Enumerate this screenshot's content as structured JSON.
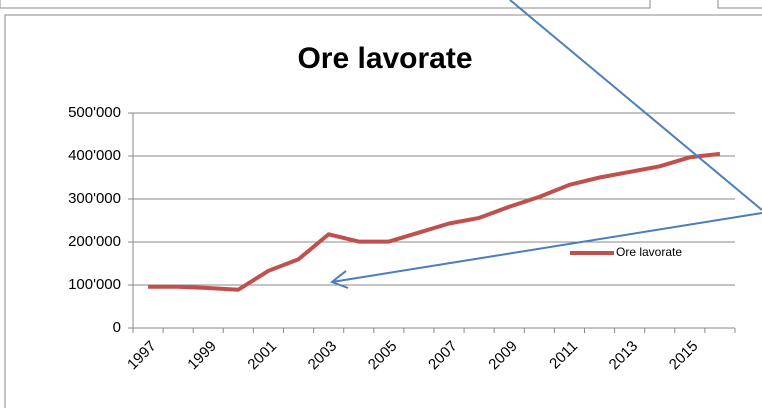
{
  "chart_data": {
    "type": "line",
    "title": "Ore lavorate",
    "categories": [
      "1997",
      null,
      "1999",
      null,
      "2001",
      null,
      "2003",
      null,
      "2005",
      null,
      "2007",
      null,
      "2009",
      null,
      "2011",
      null,
      "2013",
      null,
      "2015",
      null
    ],
    "series": [
      {
        "name": "Ore lavorate",
        "color": "#c0504d",
        "values": [
          96000,
          96000,
          93000,
          89000,
          133000,
          160000,
          218000,
          201000,
          201000,
          222000,
          243000,
          256000,
          282000,
          305000,
          333000,
          350000,
          363000,
          376000,
          397000,
          405000
        ]
      }
    ],
    "ylim": [
      0,
      500000
    ],
    "yticks": [
      0,
      {
        "value": 100000,
        "label": "100'000"
      },
      {
        "value": 200000,
        "label": "200'000"
      },
      {
        "value": 300000,
        "label": "300'000"
      },
      {
        "value": 400000,
        "label": "400'000"
      },
      {
        "value": 500000,
        "label": "500'000"
      }
    ],
    "grid": true,
    "legend": "right"
  }
}
